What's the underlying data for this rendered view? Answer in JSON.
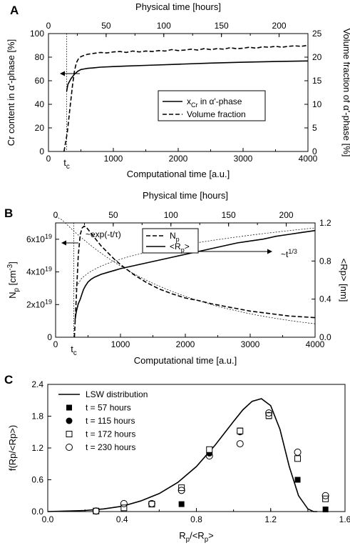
{
  "chart_data": [
    {
      "panel_label": "A",
      "type": "line",
      "xlabel": "Computational time [a.u.]",
      "xlim": [
        0,
        4000
      ],
      "x_ticks": [
        "0",
        "1000",
        "2000",
        "3000",
        "4000"
      ],
      "x_top_label": "Physical time [hours]",
      "x_top_lim": [
        0,
        225
      ],
      "x_top_ticks": [
        "0",
        "50",
        "100",
        "150",
        "200"
      ],
      "ylabel_left": "Cr content in α'-phase [%]",
      "ylim_left": [
        0,
        100
      ],
      "y_left_ticks": [
        "0",
        "20",
        "40",
        "60",
        "80",
        "100"
      ],
      "ylabel_right": "Volume fraction of α'-phase [%]",
      "ylim_right": [
        0,
        25
      ],
      "y_right_ticks": [
        "0",
        "5",
        "10",
        "15",
        "20",
        "25"
      ],
      "tc_label": "t",
      "tc_sub": "c",
      "tc_x": 280,
      "legend": [
        {
          "pre": "x",
          "sub": "Cr",
          "post": " in α'-phase",
          "dash": "solid"
        },
        {
          "pre": "Volume fraction",
          "sub": "",
          "post": "",
          "dash": "dashed"
        }
      ],
      "series": [
        {
          "name": "x_Cr in α'-phase",
          "axis": "left",
          "style": "solid",
          "x": [
            280,
            300,
            350,
            400,
            450,
            500,
            550,
            600,
            700,
            800,
            1000,
            1200,
            1500,
            2000,
            2500,
            3000,
            3500,
            4000
          ],
          "y": [
            51,
            57,
            62,
            65.5,
            68,
            69.5,
            70,
            70.5,
            71,
            71.5,
            72,
            72.5,
            73,
            74,
            75,
            75.7,
            76.3,
            76.8
          ]
        },
        {
          "name": "Volume fraction",
          "axis": "right",
          "style": "dashed",
          "x": [
            240,
            290,
            330,
            370,
            400,
            430,
            460,
            500,
            550,
            600,
            700,
            800,
            900,
            1000,
            1100,
            1200,
            1300,
            1400,
            1500,
            1600,
            1700,
            1800,
            1900,
            2000,
            2100,
            2200,
            2300,
            2400,
            2500,
            2600,
            2700,
            2800,
            2900,
            3000,
            3100,
            3200,
            3300,
            3400,
            3500,
            3600,
            3700,
            3800,
            3900,
            4000
          ],
          "y": [
            0,
            4,
            9,
            14,
            17,
            18.8,
            19.6,
            20.1,
            20.4,
            20.6,
            20.8,
            21,
            20.9,
            21.1,
            21.2,
            21,
            21.3,
            21.1,
            21.3,
            21.2,
            21.4,
            21.3,
            21.6,
            21.4,
            21.5,
            21.7,
            21.5,
            21.8,
            21.6,
            21.8,
            21.7,
            22,
            21.8,
            21.9,
            22.1,
            21.9,
            22.2,
            22.1,
            22.3,
            22.1,
            22.3,
            22.4,
            22.3,
            22.5
          ]
        }
      ]
    },
    {
      "panel_label": "B",
      "type": "line",
      "xlabel": "Computational time [a.u.]",
      "xlim": [
        0,
        4000
      ],
      "x_ticks": [
        "0",
        "1000",
        "2000",
        "3000",
        "4000"
      ],
      "x_top_label": "Physical time [hours]",
      "x_top_lim": [
        0,
        225
      ],
      "x_top_ticks": [
        "0",
        "50",
        "100",
        "150",
        "200"
      ],
      "ylabel_left_main": "N",
      "ylabel_left_sub": "p",
      "ylabel_left_unit": " [cm",
      "ylabel_left_sup": "-3",
      "ylabel_left_end": "]",
      "ylim_left": [
        0,
        7
      ],
      "y_left_ticks": [
        {
          "v": 0,
          "main": "0",
          "sup": ""
        },
        {
          "v": 2,
          "main": "2x10",
          "sup": "19"
        },
        {
          "v": 4,
          "main": "4x10",
          "sup": "19"
        },
        {
          "v": 6,
          "main": "6x10",
          "sup": "19"
        }
      ],
      "ylabel_right": "<Rp> [nm]",
      "ylim_right": [
        0,
        1.2
      ],
      "y_right_ticks": [
        "0.0",
        "0.4",
        "0.8",
        "1.2"
      ],
      "tc_label": "t",
      "tc_sub": "c",
      "tc_x": 280,
      "annotation_exp": "~exp(-t/τ)",
      "annotation_pow_main": "~t",
      "annotation_pow_sup": "1/3",
      "legend": [
        {
          "pre": "N",
          "sub": "p",
          "post": "",
          "dash": "dashed"
        },
        {
          "pre": "<R",
          "sub": "p",
          "post": ">",
          "dash": "solid"
        }
      ],
      "series": [
        {
          "name": "N_p",
          "axis": "left",
          "style": "dashed",
          "x": [
            290,
            320,
            350,
            380,
            410,
            440,
            470,
            500,
            550,
            600,
            700,
            800,
            900,
            1000,
            1200,
            1400,
            1600,
            1800,
            2000,
            2200,
            2400,
            2600,
            2800,
            3000,
            3200,
            3400,
            3600,
            3800,
            4000
          ],
          "y": [
            0,
            2.5,
            5,
            6.3,
            6.7,
            6.8,
            6.75,
            6.6,
            6.35,
            6.1,
            5.6,
            5.2,
            4.8,
            4.45,
            3.85,
            3.35,
            2.95,
            2.65,
            2.4,
            2.25,
            2.05,
            1.9,
            1.75,
            1.6,
            1.5,
            1.4,
            1.3,
            1.25,
            1.2
          ]
        },
        {
          "name": "<Rp>",
          "axis": "right",
          "style": "solid",
          "x": [
            300,
            320,
            350,
            380,
            400,
            430,
            460,
            500,
            550,
            600,
            700,
            800,
            900,
            1000,
            1200,
            1400,
            1600,
            1800,
            2000,
            2200,
            2400,
            2600,
            2800,
            3000,
            3200,
            3400,
            3600,
            3800,
            4000
          ],
          "y": [
            0.18,
            0.27,
            0.35,
            0.4,
            0.44,
            0.5,
            0.54,
            0.58,
            0.61,
            0.63,
            0.66,
            0.68,
            0.7,
            0.72,
            0.75,
            0.78,
            0.81,
            0.84,
            0.87,
            0.9,
            0.93,
            0.96,
            0.99,
            1.01,
            1.03,
            1.06,
            1.08,
            1.1,
            1.12
          ]
        }
      ]
    },
    {
      "panel_label": "C",
      "type": "scatter",
      "xlabel_main": "R",
      "xlabel_sub": "p",
      "xlabel_rest": "/<R",
      "xlabel_sub2": "p",
      "xlabel_end": ">",
      "xlim": [
        0,
        1.6
      ],
      "x_ticks": [
        "0.0",
        "0.4",
        "0.8",
        "1.2",
        "1.6"
      ],
      "ylabel": "f(Rp/<Rp>)",
      "ylim": [
        0,
        2.4
      ],
      "y_ticks": [
        "0.0",
        "0.6",
        "1.2",
        "1.8",
        "2.4"
      ],
      "legend": [
        {
          "text": "LSW distribution",
          "marker": "line"
        },
        {
          "text": "t = 57 hours",
          "marker": "filled-square"
        },
        {
          "text": "t = 115 hours",
          "marker": "filled-circle"
        },
        {
          "text": "t = 172 hours",
          "marker": "open-square"
        },
        {
          "text": "t = 230 hours",
          "marker": "open-circle"
        }
      ],
      "lsw_curve": {
        "name": "LSW distribution",
        "x": [
          0,
          0.2,
          0.3,
          0.4,
          0.5,
          0.6,
          0.7,
          0.8,
          0.9,
          1.0,
          1.05,
          1.1,
          1.15,
          1.2,
          1.25,
          1.3,
          1.35,
          1.4,
          1.43,
          1.45
        ],
        "y": [
          0,
          0.02,
          0.05,
          0.1,
          0.2,
          0.34,
          0.55,
          0.85,
          1.25,
          1.7,
          1.92,
          2.08,
          2.13,
          2.0,
          1.55,
          0.85,
          0.3,
          0.05,
          0.0,
          0.0
        ]
      },
      "series": [
        {
          "name": "t = 57 hours",
          "marker": "filled-square",
          "x": [
            0.72,
            0.87,
            1.035,
            1.19,
            1.345,
            1.495
          ],
          "y": [
            0.14,
            1.15,
            1.53,
            1.8,
            0.6,
            0.04
          ]
        },
        {
          "name": "t = 115 hours",
          "marker": "filled-circle",
          "x": [
            0.87,
            1.035,
            1.19
          ],
          "y": [
            1.1,
            1.5,
            1.82
          ]
        },
        {
          "name": "t = 172 hours",
          "marker": "open-square",
          "x": [
            0.26,
            0.41,
            0.56,
            0.72,
            0.87,
            1.035,
            1.19,
            1.345,
            1.495
          ],
          "y": [
            0.01,
            0.07,
            0.14,
            0.45,
            1.17,
            1.52,
            1.81,
            1.0,
            0.24
          ]
        },
        {
          "name": "t = 230 hours",
          "marker": "open-circle",
          "x": [
            0.26,
            0.41,
            0.56,
            0.72,
            0.87,
            1.035,
            1.19,
            1.345,
            1.495
          ],
          "y": [
            0.01,
            0.15,
            0.15,
            0.4,
            1.05,
            1.28,
            1.86,
            1.12,
            0.3
          ]
        }
      ]
    }
  ]
}
